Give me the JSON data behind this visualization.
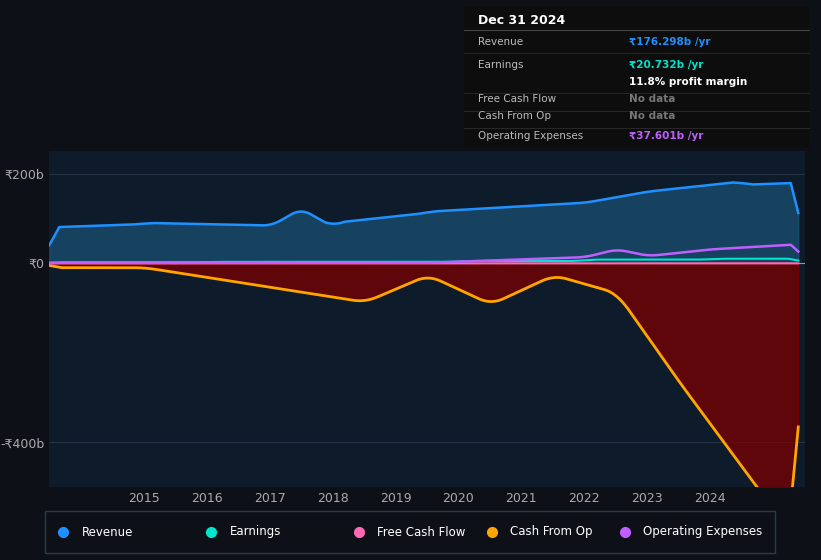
{
  "bg_color": "#0d1117",
  "plot_bg_color": "#0d1b2a",
  "ylim": [
    -500,
    250
  ],
  "yticks": [
    -400,
    0,
    200
  ],
  "ytick_labels": [
    "-₹400b",
    "₹0",
    "₹200b"
  ],
  "xticks": [
    2015,
    2016,
    2017,
    2018,
    2019,
    2020,
    2021,
    2022,
    2023,
    2024
  ],
  "xlim": [
    2013.5,
    2025.5
  ],
  "revenue_color": "#1e90ff",
  "earnings_color": "#00e5cc",
  "free_cash_flow_color": "#ff69b4",
  "cash_from_op_color": "#ffa500",
  "op_expenses_color": "#bf5fff",
  "info_box": {
    "date": "Dec 31 2024",
    "revenue_label": "Revenue",
    "revenue_value": "₹176.298b /yr",
    "earnings_label": "Earnings",
    "earnings_value": "₹20.732b /yr",
    "profit_margin": "11.8% profit margin",
    "fcf_label": "Free Cash Flow",
    "fcf_value": "No data",
    "cop_label": "Cash From Op",
    "cop_value": "No data",
    "opex_label": "Operating Expenses",
    "opex_value": "₹37.601b /yr"
  },
  "legend_items": [
    {
      "label": "Revenue",
      "color": "#1e90ff"
    },
    {
      "label": "Earnings",
      "color": "#00e5cc"
    },
    {
      "label": "Free Cash Flow",
      "color": "#ff69b4"
    },
    {
      "label": "Cash From Op",
      "color": "#ffa500"
    },
    {
      "label": "Operating Expenses",
      "color": "#bf5fff"
    }
  ]
}
